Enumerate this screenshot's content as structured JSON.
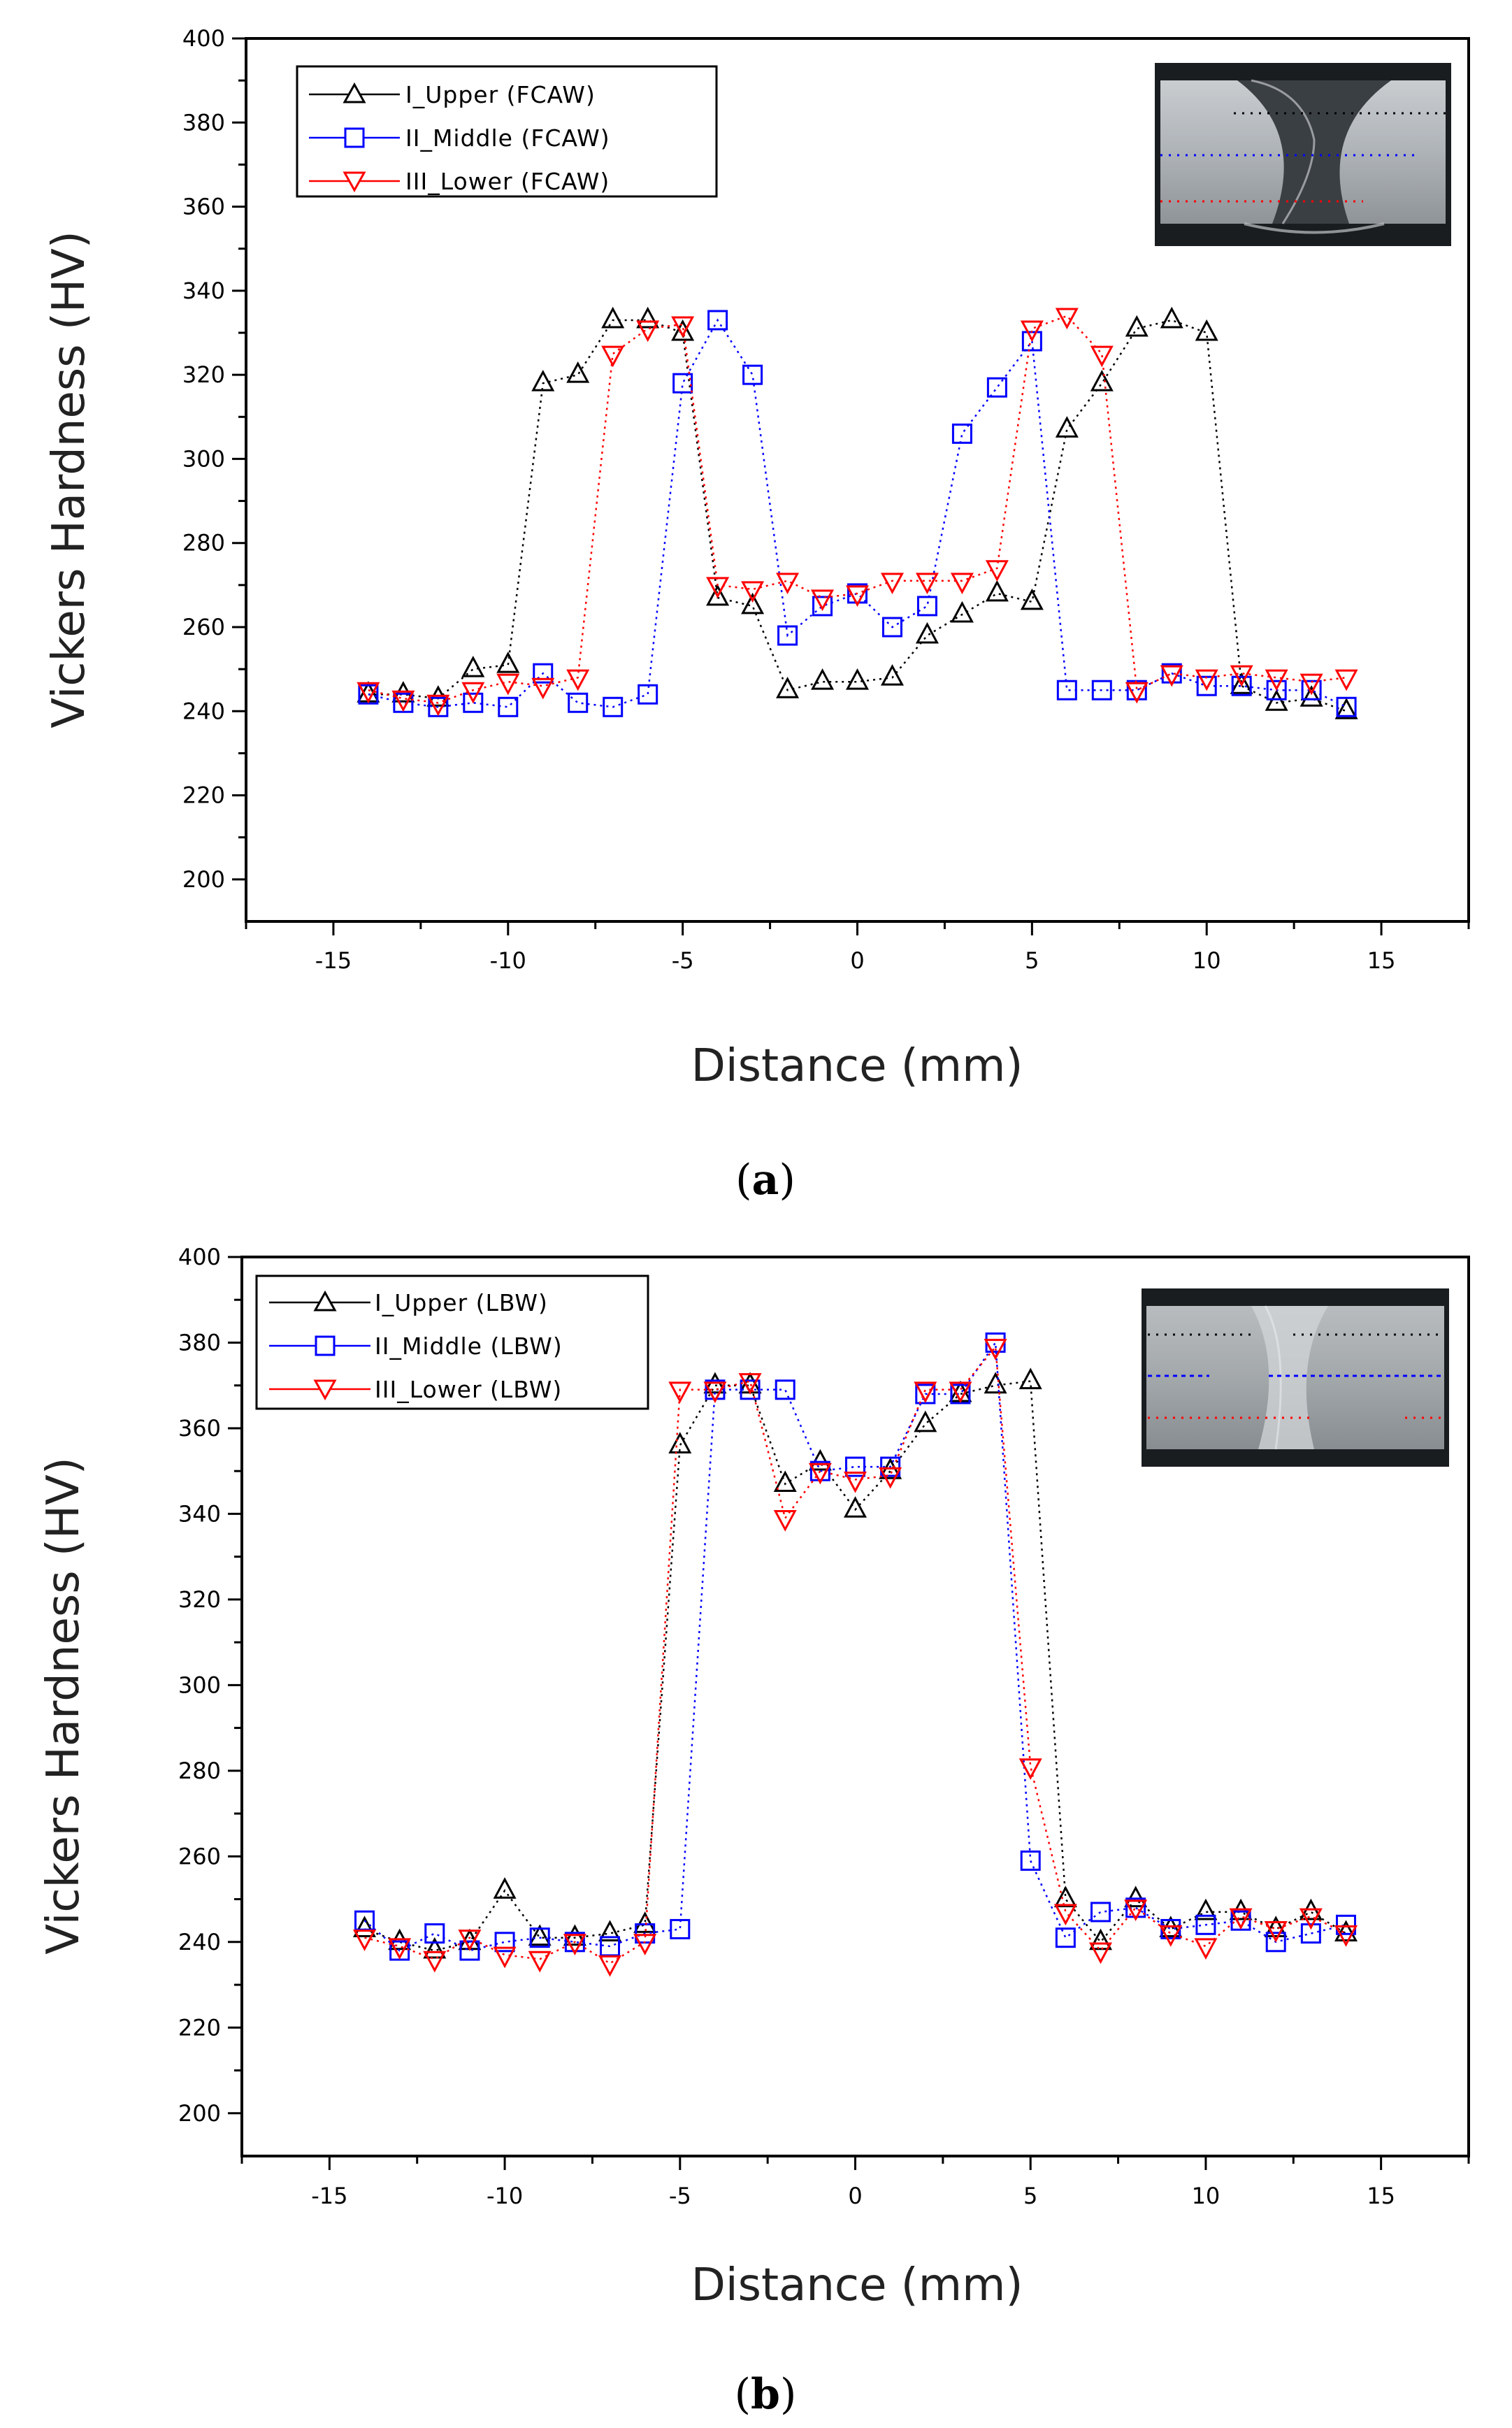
{
  "chart_data": [
    {
      "type": "line",
      "panel_label": "a",
      "xlabel": "Distance (mm)",
      "ylabel": "Vickers Hardness (HV)",
      "xlim": [
        -17.5,
        17.5
      ],
      "ylim": [
        190,
        400
      ],
      "xticks": [
        -15,
        -10,
        -5,
        0,
        5,
        10,
        15
      ],
      "yticks": [
        200,
        220,
        240,
        260,
        280,
        300,
        320,
        340,
        360,
        380,
        400
      ],
      "legend_position": "top-left",
      "inset": "weld cross-section photo (top-right)",
      "series": [
        {
          "name": "I_Upper (FCAW)",
          "color": "#000000",
          "marker": "triangle-up",
          "x": [
            -14,
            -13,
            -12,
            -11,
            -10,
            -9,
            -8,
            -7,
            -6,
            -5,
            -4,
            -3,
            -2,
            -1,
            0,
            1,
            2,
            3,
            4,
            5,
            6,
            7,
            8,
            9,
            10,
            11,
            12,
            13,
            14
          ],
          "y": [
            244,
            244,
            243,
            250,
            251,
            318,
            320,
            333,
            333,
            330,
            267,
            265,
            245,
            247,
            247,
            248,
            258,
            263,
            268,
            266,
            307,
            318,
            331,
            333,
            330,
            246,
            242,
            243,
            240
          ]
        },
        {
          "name": "II_Middle (FCAW)",
          "color": "#0000ff",
          "marker": "square",
          "x": [
            -14,
            -13,
            -12,
            -11,
            -10,
            -9,
            -8,
            -7,
            -6,
            -5,
            -4,
            -3,
            -2,
            -1,
            0,
            1,
            2,
            3,
            4,
            5,
            6,
            7,
            8,
            9,
            10,
            11,
            12,
            13,
            14
          ],
          "y": [
            244,
            242,
            241,
            242,
            241,
            249,
            242,
            241,
            244,
            318,
            333,
            320,
            258,
            265,
            268,
            260,
            265,
            306,
            317,
            328,
            245,
            245,
            245,
            249,
            246,
            246,
            245,
            245,
            241
          ]
        },
        {
          "name": "III_Lower (FCAW)",
          "color": "#ff0000",
          "marker": "triangle-down",
          "x": [
            -14,
            -13,
            -12,
            -11,
            -10,
            -9,
            -8,
            -7,
            -6,
            -5,
            -4,
            -3,
            -2,
            -1,
            0,
            1,
            2,
            3,
            4,
            5,
            6,
            7,
            8,
            9,
            10,
            11,
            12,
            13,
            14
          ],
          "y": [
            245,
            243,
            242,
            245,
            247,
            246,
            248,
            325,
            331,
            332,
            270,
            269,
            271,
            267,
            268,
            271,
            271,
            271,
            274,
            331,
            334,
            325,
            245,
            249,
            248,
            249,
            248,
            247,
            248
          ]
        }
      ]
    },
    {
      "type": "line",
      "panel_label": "b",
      "xlabel": "Distance (mm)",
      "ylabel": "Vickers Hardness (HV)",
      "xlim": [
        -17.5,
        17.5
      ],
      "ylim": [
        190,
        400
      ],
      "xticks": [
        -15,
        -10,
        -5,
        0,
        5,
        10,
        15
      ],
      "yticks": [
        200,
        220,
        240,
        260,
        280,
        300,
        320,
        340,
        360,
        380,
        400
      ],
      "legend_position": "top-left",
      "inset": "weld cross-section photo (top-right)",
      "series": [
        {
          "name": "I_Upper (LBW)",
          "color": "#000000",
          "marker": "triangle-up",
          "x": [
            -14,
            -13,
            -12,
            -11,
            -10,
            -9,
            -8,
            -7,
            -6,
            -5,
            -4,
            -3,
            -2,
            -1,
            0,
            1,
            2,
            3,
            4,
            5,
            6,
            7,
            8,
            9,
            10,
            11,
            12,
            13,
            14
          ],
          "y": [
            243,
            240,
            238,
            240,
            252,
            241,
            241,
            242,
            244,
            356,
            370,
            370,
            347,
            352,
            341,
            350,
            361,
            368,
            370,
            371,
            250,
            240,
            250,
            243,
            247,
            247,
            243,
            247,
            242
          ]
        },
        {
          "name": "II_Middle (LBW)",
          "color": "#0000ff",
          "marker": "square",
          "x": [
            -14,
            -13,
            -12,
            -11,
            -10,
            -9,
            -8,
            -7,
            -6,
            -5,
            -4,
            -3,
            -2,
            -1,
            0,
            1,
            2,
            3,
            4,
            5,
            6,
            7,
            8,
            9,
            10,
            11,
            12,
            13,
            14
          ],
          "y": [
            245,
            238,
            242,
            238,
            240,
            241,
            240,
            239,
            242,
            243,
            369,
            369,
            369,
            350,
            351,
            351,
            368,
            368,
            380,
            259,
            241,
            247,
            248,
            243,
            244,
            245,
            240,
            242,
            244
          ]
        },
        {
          "name": "III_Lower (LBW)",
          "color": "#ff0000",
          "marker": "triangle-down",
          "x": [
            -14,
            -13,
            -12,
            -11,
            -10,
            -9,
            -8,
            -7,
            -6,
            -5,
            -4,
            -3,
            -2,
            -1,
            0,
            1,
            2,
            3,
            4,
            5,
            6,
            7,
            8,
            9,
            10,
            11,
            12,
            13,
            14
          ],
          "y": [
            241,
            239,
            236,
            241,
            237,
            236,
            240,
            235,
            240,
            369,
            369,
            371,
            339,
            350,
            348,
            349,
            369,
            369,
            379,
            281,
            247,
            238,
            248,
            242,
            239,
            246,
            243,
            246,
            242
          ]
        }
      ]
    }
  ]
}
